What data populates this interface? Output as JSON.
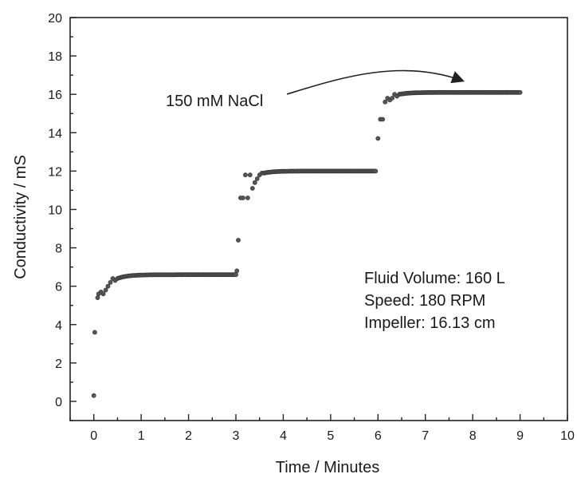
{
  "chart_data": {
    "type": "scatter",
    "title": "",
    "xlabel": "Time / Minutes",
    "ylabel": "Conductivity / mS",
    "xlim": [
      -0.5,
      10
    ],
    "ylim": [
      -1,
      20
    ],
    "xticks": [
      0,
      1,
      2,
      3,
      4,
      5,
      6,
      7,
      8,
      9,
      10
    ],
    "yticks": [
      0,
      2,
      4,
      6,
      8,
      10,
      12,
      14,
      16,
      18,
      20
    ],
    "grid": false,
    "legend": "none",
    "marker_color": "#555555",
    "series": [
      {
        "segments": [
          {
            "type": "points",
            "x": [
              0.0,
              0.02,
              0.08,
              0.1,
              0.15,
              0.2,
              0.25,
              0.3,
              0.35,
              0.4,
              0.45
            ],
            "y": [
              0.3,
              3.6,
              5.4,
              5.6,
              5.7,
              5.6,
              5.8,
              6.0,
              6.2,
              6.4,
              6.3
            ]
          },
          {
            "type": "plateau",
            "x_start": 0.5,
            "x_end": 3.0,
            "level": 6.6,
            "approach_from": 6.4,
            "n": 90
          },
          {
            "type": "points",
            "x": [
              3.02,
              3.05,
              3.1,
              3.15,
              3.2,
              3.25,
              3.3,
              3.35,
              3.4,
              3.45,
              3.5,
              3.55,
              3.6
            ],
            "y": [
              6.8,
              8.4,
              10.6,
              10.6,
              11.8,
              10.6,
              11.8,
              11.1,
              11.4,
              11.6,
              11.8,
              11.9,
              11.9
            ]
          },
          {
            "type": "plateau",
            "x_start": 3.6,
            "x_end": 5.95,
            "level": 12.0,
            "approach_from": 11.9,
            "n": 90
          },
          {
            "type": "points",
            "x": [
              6.0,
              6.05,
              6.1,
              6.15,
              6.2,
              6.25,
              6.3,
              6.35,
              6.4
            ],
            "y": [
              13.7,
              14.7,
              14.7,
              15.6,
              15.8,
              15.7,
              15.8,
              16.0,
              15.9
            ]
          },
          {
            "type": "plateau",
            "x_start": 6.45,
            "x_end": 9.0,
            "level": 16.1,
            "approach_from": 16.0,
            "n": 100
          }
        ]
      }
    ],
    "annotations": {
      "arrow_label": "150 mM NaCl",
      "info_lines": [
        "Fluid Volume: 160 L",
        "Speed: 180 RPM",
        "Impeller: 16.13 cm"
      ]
    }
  }
}
